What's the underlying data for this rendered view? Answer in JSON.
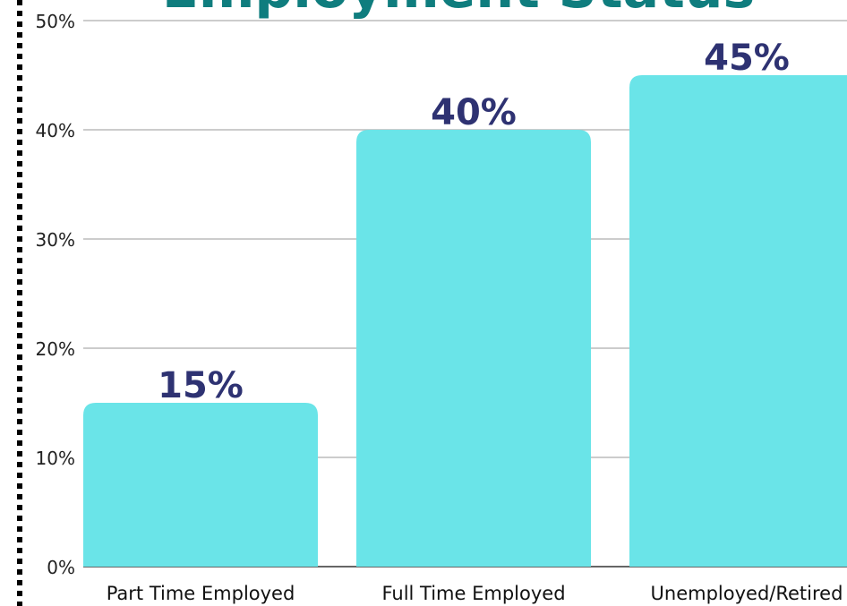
{
  "chart_data": {
    "type": "bar",
    "title": "Employment Status",
    "categories": [
      "Part Time Employed",
      "Full Time Employed",
      "Unemployed/Retired"
    ],
    "values": [
      15,
      40,
      45
    ],
    "value_labels": [
      "15%",
      "40%",
      "45%"
    ],
    "color": "#6ae4e8",
    "ylim": [
      0,
      50
    ],
    "yticks": [
      {
        "value": 0,
        "label": "0%"
      },
      {
        "value": 10,
        "label": "10%"
      },
      {
        "value": 20,
        "label": "20%"
      },
      {
        "value": 30,
        "label": "30%"
      },
      {
        "value": 40,
        "label": "40%"
      },
      {
        "value": 50,
        "label": "50%"
      }
    ],
    "grid": true
  }
}
